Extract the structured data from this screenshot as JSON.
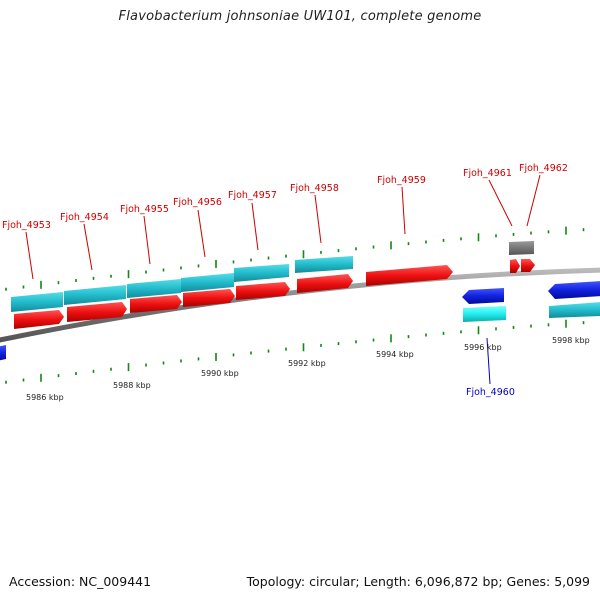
{
  "title": "Flavobacterium johnsoniae UW101, complete genome",
  "footer": {
    "accession": "Accession: NC_009441",
    "summary": "Topology: circular; Length: 6,096,872 bp; Genes: 5,099"
  },
  "colors": {
    "forward_gene": "#ee1111",
    "forward_cds": "#22bbcc",
    "reverse_gene": "#1122dd",
    "reverse_cds": "#22eeee",
    "other_gene": "#777777",
    "backbone": "#888888",
    "ticks": "#118811",
    "forward_label": "#cc0000",
    "reverse_label": "#0000cc"
  },
  "ticks": [
    {
      "label": "5986 kbp"
    },
    {
      "label": "5988 kbp"
    },
    {
      "label": "5990 kbp"
    },
    {
      "label": "5992 kbp"
    },
    {
      "label": "5994 kbp"
    },
    {
      "label": "5996 kbp"
    },
    {
      "label": "5998 kbp"
    }
  ],
  "genes": [
    {
      "name": "Fjoh_4953",
      "strand": "+"
    },
    {
      "name": "Fjoh_4954",
      "strand": "+"
    },
    {
      "name": "Fjoh_4955",
      "strand": "+"
    },
    {
      "name": "Fjoh_4956",
      "strand": "+"
    },
    {
      "name": "Fjoh_4957",
      "strand": "+"
    },
    {
      "name": "Fjoh_4958",
      "strand": "+"
    },
    {
      "name": "Fjoh_4959",
      "strand": "+"
    },
    {
      "name": "Fjoh_4960",
      "strand": "-"
    },
    {
      "name": "Fjoh_4961",
      "strand": "+"
    },
    {
      "name": "Fjoh_4962",
      "strand": "+"
    }
  ]
}
